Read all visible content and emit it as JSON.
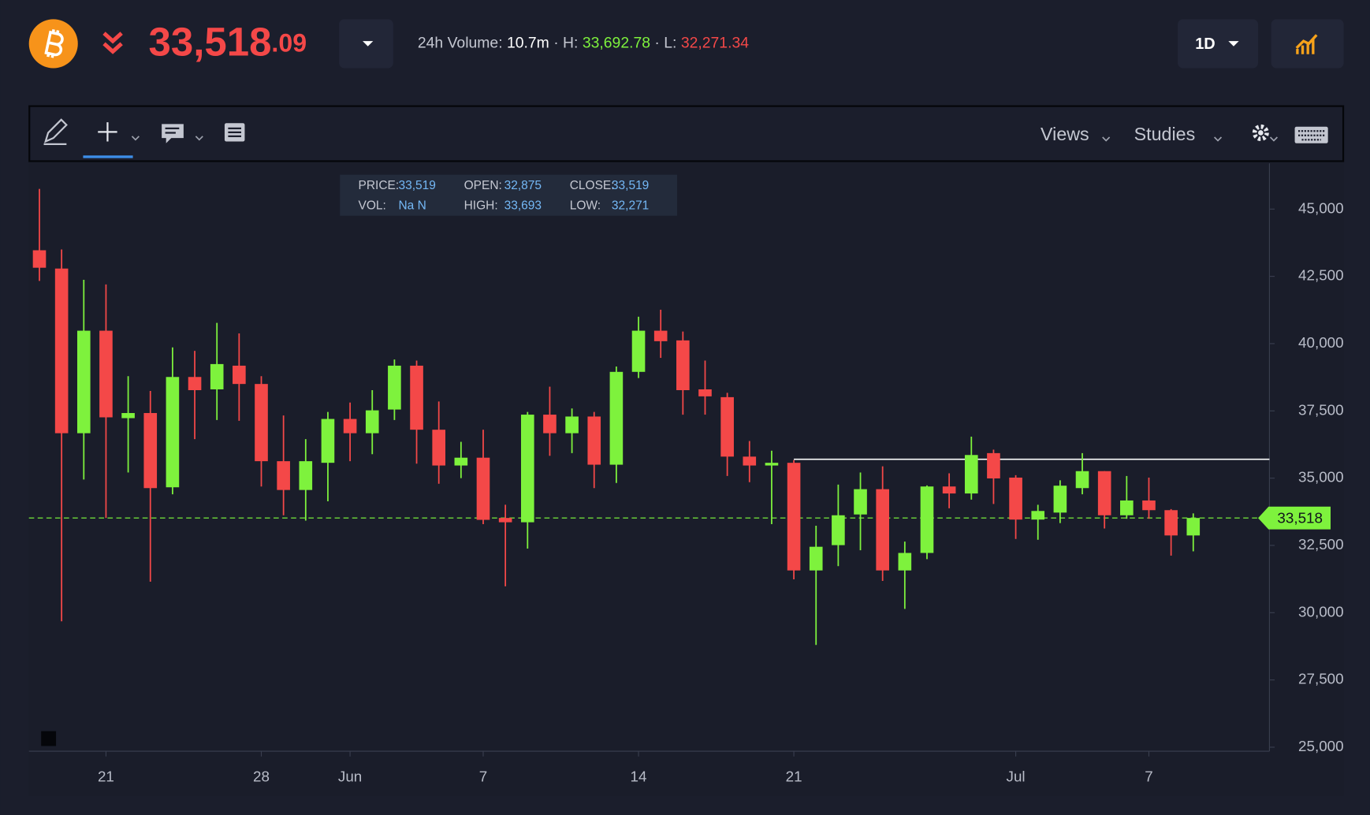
{
  "header": {
    "price_main": "33,518",
    "price_decimals": ".09",
    "volume_label": "24h Volume:",
    "volume": "10.7m",
    "high_label": "· H:",
    "high": "33,692.78",
    "low_label": "· L:",
    "low": "32,271.34",
    "interval": "1D"
  },
  "toolbar": {
    "views": "Views",
    "studies": "Studies"
  },
  "tooltip": {
    "price_label": "PRICE:",
    "price": "33,519",
    "open_label": "OPEN:",
    "open": "32,875",
    "close_label": "CLOSE:",
    "close": "33,519",
    "vol_label": "VOL:",
    "vol": "Na N",
    "high_label": "HIGH:",
    "high": "33,693",
    "low_label": "LOW:",
    "low": "32,271"
  },
  "chart_data": {
    "type": "candlestick",
    "categories": [
      null,
      null,
      null,
      "21",
      null,
      null,
      null,
      null,
      null,
      null,
      "28",
      null,
      null,
      null,
      "Jun",
      null,
      null,
      null,
      null,
      null,
      "7",
      null,
      null,
      null,
      null,
      null,
      null,
      "14",
      null,
      null,
      null,
      null,
      null,
      null,
      "21",
      null,
      null,
      null,
      null,
      null,
      null,
      null,
      null,
      null,
      "Jul",
      null,
      null,
      null,
      null,
      null,
      "7",
      null,
      null
    ],
    "open": [
      43470,
      42790,
      36670,
      40480,
      37230,
      37420,
      34660,
      38760,
      38300,
      39180,
      38500,
      35630,
      34560,
      35570,
      37200,
      36670,
      37550,
      39180,
      36800,
      35470,
      35760,
      33520,
      33360,
      37360,
      36670,
      37290,
      35500,
      38950,
      40480,
      40120,
      38300,
      38010,
      35800,
      35470,
      35570,
      31570,
      32510,
      33650,
      34590,
      31570,
      32220,
      34690,
      34430,
      35930,
      35020,
      33460,
      33720,
      34630,
      35260,
      33620,
      34170,
      33810,
      32870
    ],
    "high": [
      45750,
      43500,
      42370,
      42200,
      38790,
      38240,
      39860,
      39730,
      40770,
      40380,
      38790,
      37330,
      36450,
      37460,
      37810,
      38270,
      39410,
      39370,
      37850,
      36350,
      36800,
      34010,
      37460,
      38400,
      37590,
      37460,
      39150,
      41000,
      41260,
      40450,
      39370,
      38170,
      36380,
      36020,
      35670,
      33230,
      34760,
      35210,
      35440,
      32640,
      34730,
      35180,
      36540,
      36060,
      35110,
      34010,
      34920,
      35930,
      35260,
      35080,
      35020,
      33850,
      33690
    ],
    "low": [
      42330,
      29680,
      34950,
      33520,
      35210,
      31150,
      34400,
      36450,
      37160,
      37130,
      34690,
      33620,
      33420,
      34140,
      35630,
      35890,
      37160,
      35540,
      34790,
      35000,
      33290,
      30980,
      32380,
      35830,
      35930,
      34630,
      34820,
      38720,
      39470,
      37360,
      37360,
      35080,
      34850,
      33290,
      31240,
      28800,
      31730,
      32320,
      31180,
      30140,
      31990,
      33880,
      34200,
      34040,
      32740,
      32710,
      33330,
      34400,
      33130,
      33490,
      33490,
      32120,
      32280
    ],
    "close": [
      42820,
      36670,
      40480,
      37260,
      37420,
      34630,
      38760,
      38270,
      39240,
      38500,
      35630,
      34560,
      35630,
      37200,
      36670,
      37520,
      39180,
      36800,
      35470,
      35760,
      33450,
      33360,
      37360,
      36670,
      37290,
      35500,
      38950,
      40480,
      40090,
      38270,
      38040,
      35800,
      35470,
      35570,
      31570,
      32450,
      33620,
      34590,
      31570,
      32220,
      34690,
      34430,
      35860,
      34990,
      33460,
      33780,
      34720,
      35260,
      33620,
      34170,
      33810,
      32870,
      33520
    ],
    "up_color": "#7ef23d",
    "down_color": "#f44848",
    "ylim": [
      24850,
      46700
    ],
    "yticks": [
      {
        "value": 25000,
        "label": "25,000"
      },
      {
        "value": 27500,
        "label": "27,500"
      },
      {
        "value": 30000,
        "label": "30,000"
      },
      {
        "value": 32500,
        "label": "32,500"
      },
      {
        "value": 35000,
        "label": "35,000"
      },
      {
        "value": 37500,
        "label": "37,500"
      },
      {
        "value": 40000,
        "label": "40,000"
      },
      {
        "value": 42500,
        "label": "42,500"
      },
      {
        "value": 45000,
        "label": "45,000"
      }
    ],
    "last_price": {
      "value": 33518,
      "label": "33,518"
    },
    "hline": {
      "value": 35700,
      "start": 34
    }
  }
}
